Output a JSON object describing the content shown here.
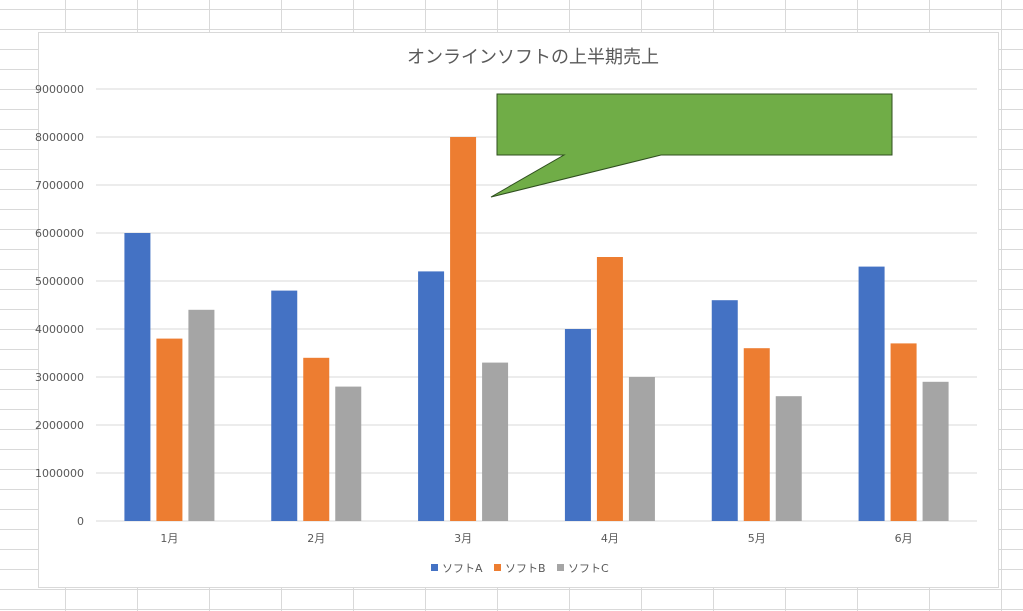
{
  "chart_data": {
    "type": "bar",
    "title": "オンラインソフトの上半期売上",
    "categories": [
      "1月",
      "2月",
      "3月",
      "4月",
      "5月",
      "6月"
    ],
    "series": [
      {
        "name": "ソフトA",
        "color": "#4472c4",
        "values": [
          6000000,
          4800000,
          5200000,
          4000000,
          4600000,
          5300000
        ]
      },
      {
        "name": "ソフトB",
        "color": "#ed7d31",
        "values": [
          3800000,
          3400000,
          8000000,
          5500000,
          3600000,
          3700000
        ]
      },
      {
        "name": "ソフトC",
        "color": "#a5a5a5",
        "values": [
          4400000,
          2800000,
          3300000,
          3000000,
          2600000,
          2900000
        ]
      }
    ],
    "yticks": [
      "0",
      "1000000",
      "2000000",
      "3000000",
      "4000000",
      "5000000",
      "6000000",
      "7000000",
      "8000000",
      "9000000"
    ],
    "ylim": [
      0,
      9000000
    ],
    "grid": true,
    "legend_position": "bottom",
    "callout": {
      "shape": "rectangular-speech-bubble",
      "fill": "#70ad47",
      "points_to": "3月 ソフトB",
      "text": ""
    }
  }
}
